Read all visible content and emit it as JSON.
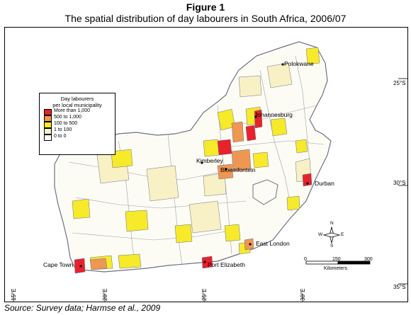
{
  "header": {
    "figure_label": "Figure 1",
    "title": "The spatial distribution of day labourers in South Africa, 2006/07"
  },
  "legend": {
    "title_line1": "Day labourers",
    "title_line2": "per local municipality",
    "classes": [
      {
        "label": "More than 1,000",
        "color": "#e8212b"
      },
      {
        "label": "500 to 1,000",
        "color": "#ee9752"
      },
      {
        "label": "100 to    500",
        "color": "#f6ea2a"
      },
      {
        "label": "1 to    100",
        "color": "#f8f1c6"
      },
      {
        "label": "0 to      0",
        "color": "#ffffff"
      }
    ]
  },
  "cities": {
    "polokwane": "Polokwane",
    "johannesburg": "Johannesburg",
    "kimberley": "Kimberley",
    "bloemfontein": "Bloemfontein",
    "durban": "Durban",
    "east_london": "East London",
    "port_elizabeth": "Port Elizabeth",
    "cape_town": "Cape Town"
  },
  "graticule": {
    "lat_25": "25°S",
    "lat_30": "30°S",
    "lat_35": "35°S",
    "lon_15": "15°E",
    "lon_20": "20°E",
    "lon_25": "25°E",
    "lon_30": "30°E"
  },
  "scale_bar": {
    "tick_0": "0",
    "tick_150": "150",
    "tick_300": "300",
    "unit": "Kilometers"
  },
  "compass": {
    "n": "N",
    "s": "S",
    "e": "E",
    "w": "W"
  },
  "source": "Source: Survey data; Harmse et al., 2009"
}
